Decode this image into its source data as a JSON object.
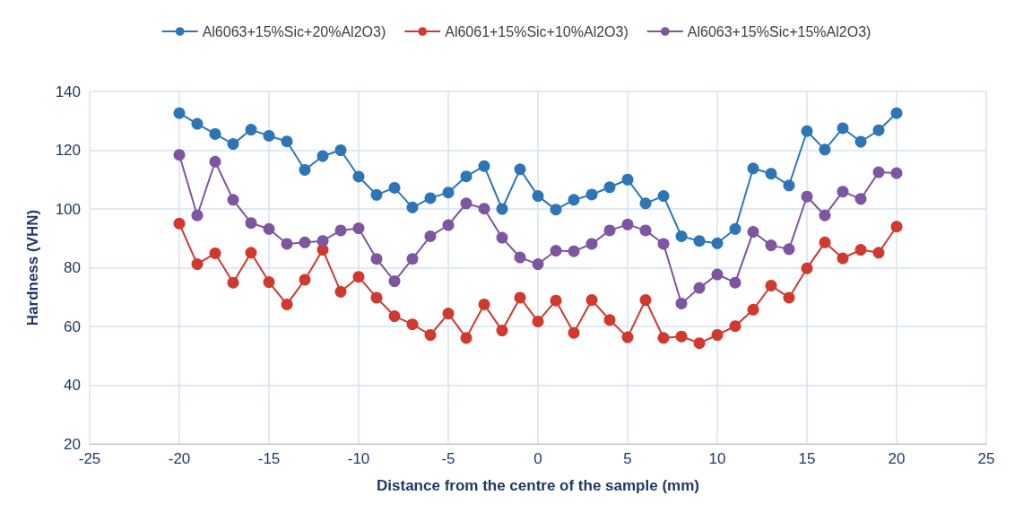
{
  "chart_data": {
    "type": "line",
    "xlabel": "Distance from the centre of the sample (mm)",
    "ylabel": "Hardness (VHN)",
    "x": [
      -20,
      -19,
      -18,
      -17,
      -16,
      -15,
      -14,
      -13,
      -12,
      -11,
      -10,
      -9,
      -8,
      -7,
      -6,
      -5,
      -4,
      -3,
      -2,
      -1,
      0,
      1,
      2,
      3,
      4,
      5,
      6,
      7,
      8,
      9,
      10,
      11,
      12,
      13,
      14,
      15,
      16,
      17,
      18,
      19,
      20
    ],
    "series": [
      {
        "name": "Al6063+15%Sic+20%Al2O3)",
        "color": "#2e75b6",
        "values": [
          132.6,
          129,
          125.5,
          122.1,
          127,
          124.9,
          123,
          113.3,
          118,
          120,
          111,
          104.8,
          107.2,
          100.5,
          103.7,
          105.6,
          111.1,
          114.6,
          100,
          113.5,
          104.4,
          99.8,
          103.1,
          104.9,
          107.4,
          110,
          101.9,
          104.4,
          90.7,
          89.1,
          88.3,
          93.2,
          113.8,
          112,
          108,
          126.5,
          120.2,
          127.5,
          122.9,
          126.8,
          132.6
        ]
      },
      {
        "name": "Al6061+15%Sic+10%Al2O3)",
        "color": "#d0392e",
        "values": [
          95,
          81.2,
          84.9,
          74.9,
          85.1,
          75.1,
          67.5,
          75.9,
          86.1,
          71.8,
          76.9,
          69.8,
          63.5,
          60.7,
          57.1,
          64.4,
          56.1,
          67.5,
          58.6,
          69.8,
          61.7,
          68.8,
          57.8,
          69,
          62.2,
          56.3,
          69,
          56.1,
          56.6,
          54.3,
          57.1,
          60.1,
          65.7,
          73.9,
          69.8,
          79.8,
          88.6,
          83.2,
          86.1,
          85.1,
          94
        ]
      },
      {
        "name": "Al6063+15%Sic+15%Al2O3)",
        "color": "#7e55a0",
        "values": [
          118.4,
          97.8,
          116.1,
          103.1,
          95.2,
          93.2,
          88.1,
          88.6,
          89.1,
          92.7,
          93.4,
          83,
          75.4,
          83,
          90.7,
          94.5,
          101.9,
          100.1,
          90.2,
          83.5,
          81.2,
          85.8,
          85.6,
          88.1,
          92.7,
          94.7,
          92.7,
          88.1,
          67.8,
          73.1,
          77.7,
          74.9,
          92.2,
          87.6,
          86.3,
          104.2,
          97.8,
          105.9,
          103.4,
          112.5,
          112.2
        ]
      }
    ],
    "xlim": [
      -25,
      25
    ],
    "xticks": [
      -25,
      -20,
      -15,
      -10,
      -5,
      0,
      5,
      10,
      15,
      20,
      25
    ],
    "ylim": [
      20,
      140
    ],
    "yticks": [
      20,
      40,
      60,
      80,
      100,
      120,
      140
    ],
    "grid": true,
    "legend": "top",
    "marker": "circle",
    "line_style": "solid"
  }
}
